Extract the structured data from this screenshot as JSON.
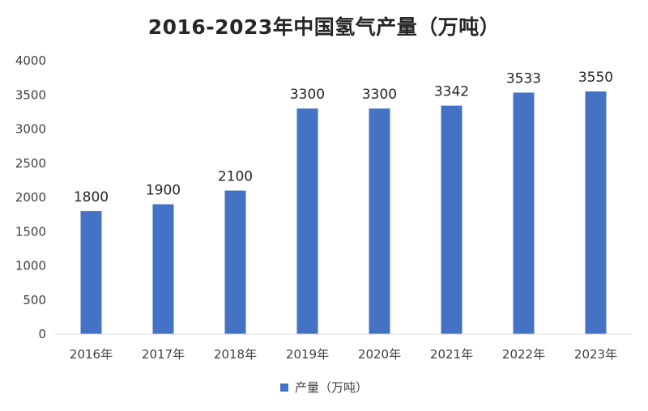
{
  "chart_data": {
    "type": "bar",
    "title": "2016-2023年中国氢气产量（万吨）",
    "categories": [
      "2016年",
      "2017年",
      "2018年",
      "2019年",
      "2020年",
      "2021年",
      "2022年",
      "2023年"
    ],
    "series": [
      {
        "name": "产量（万吨）",
        "values": [
          1800,
          1900,
          2100,
          3300,
          3300,
          3342,
          3533,
          3550
        ],
        "color": "#4472C4"
      }
    ],
    "data_labels": [
      "1800",
      "1900",
      "2100",
      "3300",
      "3300",
      "3342",
      "3533",
      "3550"
    ],
    "ylim": [
      0,
      4000
    ],
    "yticks": [
      0,
      500,
      1000,
      1500,
      2000,
      2500,
      3000,
      3500,
      4000
    ],
    "grid": false,
    "legend_position": "bottom"
  }
}
